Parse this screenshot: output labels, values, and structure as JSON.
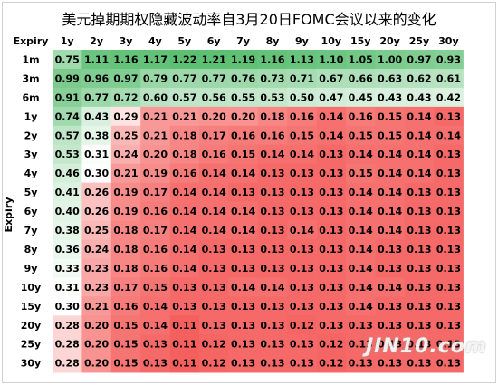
{
  "chart_data": {
    "type": "heatmap",
    "title": "美元掉期期权隐藏波动率自3月20日FOMC会议以来的变化",
    "corner_label": "Expiry",
    "ylabel": "Expiry",
    "columns": [
      "1y",
      "2y",
      "3y",
      "4y",
      "5y",
      "6y",
      "7y",
      "8y",
      "9y",
      "10y",
      "15y",
      "20y",
      "25y",
      "30y"
    ],
    "rows": [
      "1m",
      "3m",
      "6m",
      "1y",
      "2y",
      "3y",
      "4y",
      "5y",
      "6y",
      "7y",
      "8y",
      "9y",
      "10y",
      "15y",
      "20y",
      "25y",
      "30y"
    ],
    "values": [
      [
        0.75,
        1.11,
        1.16,
        1.17,
        1.22,
        1.21,
        1.19,
        1.16,
        1.13,
        1.1,
        1.05,
        1.0,
        0.97,
        0.93
      ],
      [
        0.99,
        0.96,
        0.97,
        0.79,
        0.77,
        0.77,
        0.76,
        0.73,
        0.71,
        0.67,
        0.66,
        0.63,
        0.62,
        0.61
      ],
      [
        0.91,
        0.77,
        0.72,
        0.6,
        0.57,
        0.56,
        0.55,
        0.53,
        0.5,
        0.47,
        0.45,
        0.43,
        0.43,
        0.42
      ],
      [
        0.74,
        0.43,
        0.29,
        0.21,
        0.21,
        0.2,
        0.2,
        0.18,
        0.16,
        0.14,
        0.16,
        0.15,
        0.14,
        0.13
      ],
      [
        0.57,
        0.38,
        0.25,
        0.21,
        0.18,
        0.17,
        0.16,
        0.16,
        0.15,
        0.14,
        0.15,
        0.15,
        0.14,
        0.14
      ],
      [
        0.53,
        0.31,
        0.24,
        0.2,
        0.18,
        0.16,
        0.15,
        0.14,
        0.14,
        0.13,
        0.14,
        0.14,
        0.14,
        0.13
      ],
      [
        0.46,
        0.3,
        0.21,
        0.19,
        0.16,
        0.14,
        0.14,
        0.13,
        0.13,
        0.13,
        0.15,
        0.14,
        0.14,
        0.13
      ],
      [
        0.41,
        0.26,
        0.19,
        0.17,
        0.14,
        0.14,
        0.13,
        0.13,
        0.13,
        0.13,
        0.14,
        0.14,
        0.13,
        0.13
      ],
      [
        0.4,
        0.26,
        0.19,
        0.16,
        0.14,
        0.14,
        0.14,
        0.13,
        0.13,
        0.13,
        0.14,
        0.14,
        0.13,
        0.13
      ],
      [
        0.38,
        0.25,
        0.18,
        0.17,
        0.14,
        0.14,
        0.14,
        0.13,
        0.14,
        0.13,
        0.14,
        0.14,
        0.13,
        0.13
      ],
      [
        0.36,
        0.24,
        0.18,
        0.16,
        0.14,
        0.13,
        0.13,
        0.13,
        0.13,
        0.13,
        0.14,
        0.13,
        0.13,
        0.13
      ],
      [
        0.33,
        0.23,
        0.18,
        0.16,
        0.14,
        0.13,
        0.13,
        0.13,
        0.13,
        0.13,
        0.14,
        0.13,
        0.13,
        0.13
      ],
      [
        0.31,
        0.23,
        0.17,
        0.15,
        0.13,
        0.13,
        0.14,
        0.14,
        0.13,
        0.13,
        0.14,
        0.14,
        0.13,
        0.13
      ],
      [
        0.3,
        0.21,
        0.16,
        0.14,
        0.13,
        0.13,
        0.13,
        0.13,
        0.13,
        0.13,
        0.14,
        0.13,
        0.13,
        0.13
      ],
      [
        0.28,
        0.2,
        0.15,
        0.14,
        0.11,
        0.13,
        0.13,
        0.13,
        0.12,
        0.13,
        0.13,
        0.13,
        0.13,
        0.13
      ],
      [
        0.28,
        0.2,
        0.15,
        0.13,
        0.11,
        0.12,
        0.13,
        0.13,
        0.13,
        0.12,
        0.13,
        0.13,
        0.13,
        0.13
      ],
      [
        0.28,
        0.2,
        0.15,
        0.13,
        0.11,
        0.12,
        0.13,
        0.13,
        0.13,
        0.12,
        0.13,
        0.13,
        0.13,
        0.13
      ]
    ],
    "color_scale": {
      "low": "#f4605e",
      "mid": "#ffffff",
      "high": "#5cbf72"
    }
  },
  "watermark_text": "JIN10.com"
}
